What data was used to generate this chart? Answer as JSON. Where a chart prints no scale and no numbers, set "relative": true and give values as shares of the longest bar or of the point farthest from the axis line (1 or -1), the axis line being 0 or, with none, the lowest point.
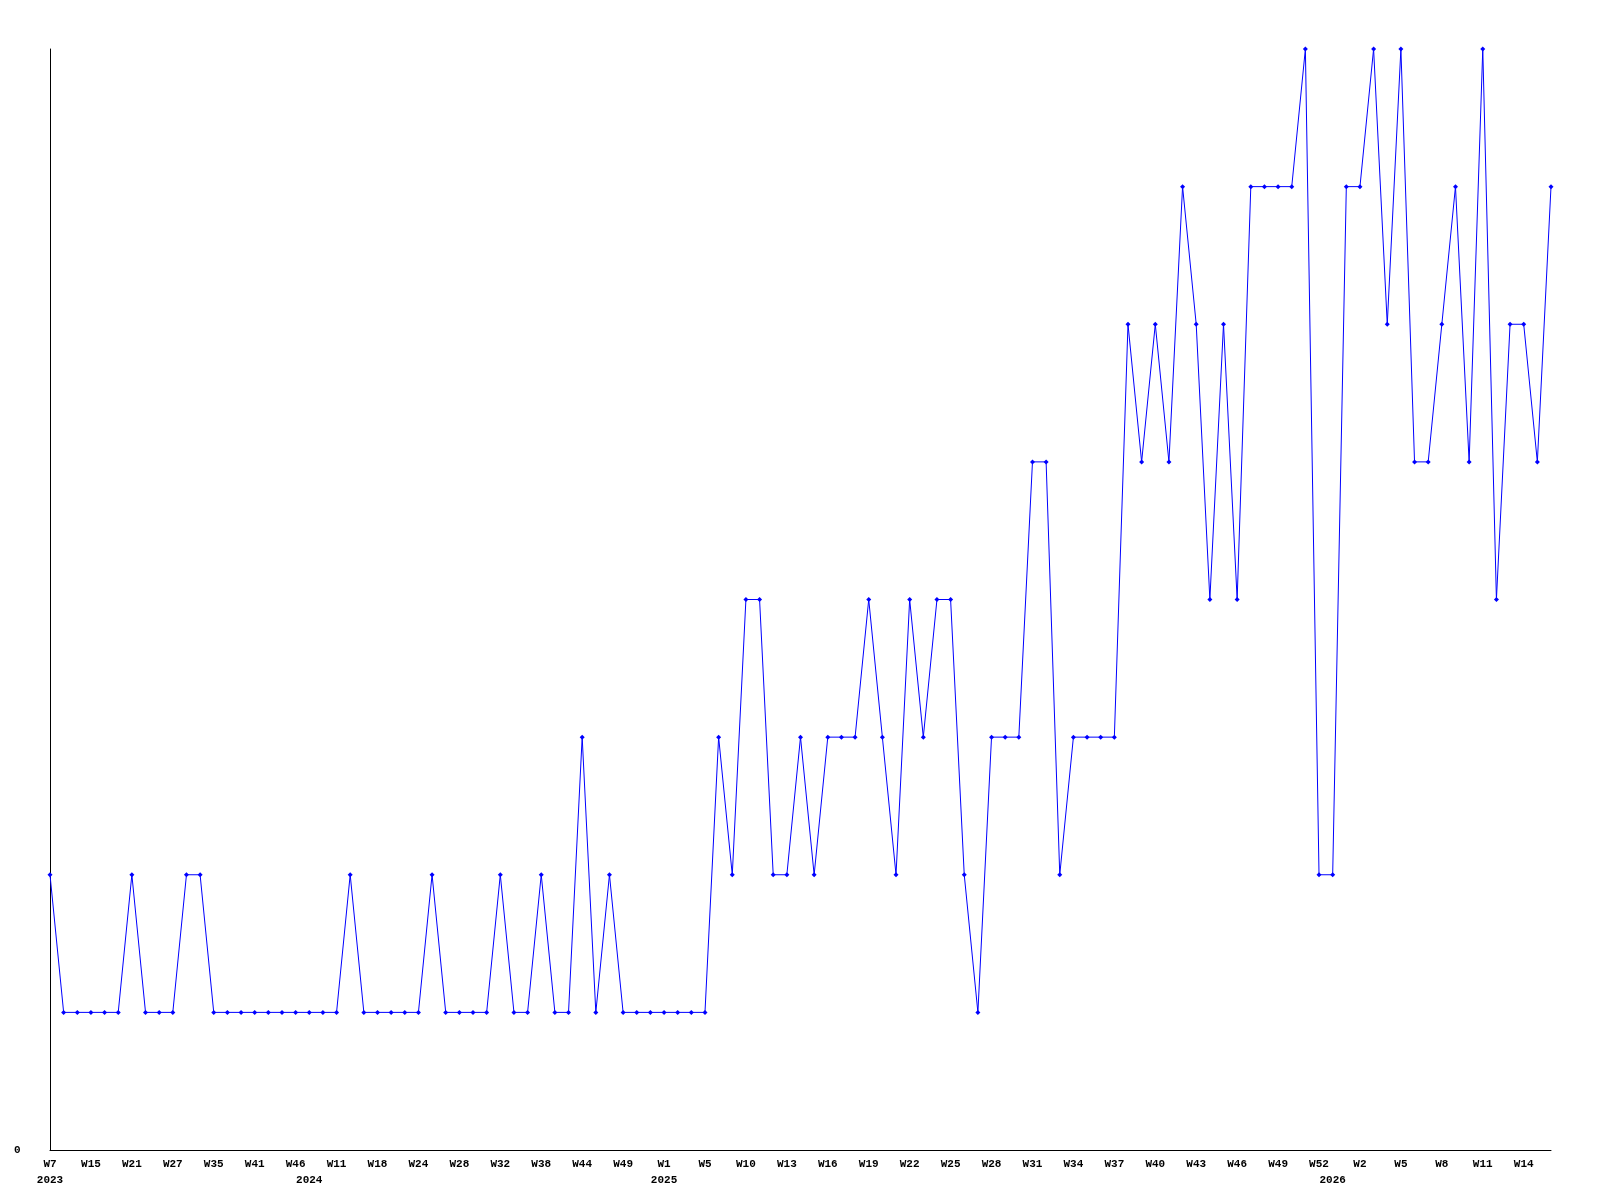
{
  "chart_data": {
    "type": "line",
    "relative": true,
    "marker": "diamond",
    "line_style": "solid",
    "annotations": [
      "0"
    ],
    "categories": [
      "W7\n2023",
      null,
      null,
      "W15",
      null,
      null,
      "W21",
      null,
      null,
      "W27",
      null,
      null,
      "W35",
      null,
      null,
      "W41",
      null,
      null,
      "W46",
      "\n2024",
      null,
      "W11",
      null,
      null,
      "W18",
      null,
      null,
      "W24",
      null,
      null,
      "W28",
      null,
      null,
      "W32",
      null,
      null,
      "W38",
      null,
      null,
      "W44",
      null,
      null,
      "W49",
      null,
      null,
      "W1\n2025",
      null,
      null,
      "W5",
      null,
      null,
      "W10",
      null,
      null,
      "W13",
      null,
      null,
      "W16",
      null,
      null,
      "W19",
      null,
      null,
      "W22",
      null,
      null,
      "W25",
      null,
      null,
      "W28",
      null,
      null,
      "W31",
      null,
      null,
      "W34",
      null,
      null,
      "W37",
      null,
      null,
      "W40",
      null,
      null,
      "W43",
      null,
      null,
      "W46",
      null,
      null,
      "W49",
      null,
      null,
      "W52",
      "\n2026",
      null,
      "W2",
      null,
      null,
      "W5",
      null,
      null,
      "W8",
      null,
      null,
      "W11",
      null,
      null,
      "W14",
      null,
      null
    ],
    "series": [
      {
        "color": "#0000ff",
        "values": [
          0.25,
          0.125,
          0.125,
          0.125,
          0.125,
          0.125,
          0.25,
          0.125,
          0.125,
          0.125,
          0.25,
          0.25,
          0.125,
          0.125,
          0.125,
          0.125,
          0.125,
          0.125,
          0.125,
          0.125,
          0.125,
          0.125,
          0.25,
          0.125,
          0.125,
          0.125,
          0.125,
          0.125,
          0.25,
          0.125,
          0.125,
          0.125,
          0.125,
          0.25,
          0.125,
          0.125,
          0.25,
          0.125,
          0.125,
          0.375,
          0.125,
          0.25,
          0.125,
          0.125,
          0.125,
          0.125,
          0.125,
          0.125,
          0.125,
          0.375,
          0.25,
          0.5,
          0.5,
          0.25,
          0.25,
          0.375,
          0.25,
          0.375,
          0.375,
          0.375,
          0.5,
          0.375,
          0.25,
          0.5,
          0.375,
          0.5,
          0.5,
          0.25,
          0.125,
          0.375,
          0.375,
          0.375,
          0.625,
          0.625,
          0.25,
          0.375,
          0.375,
          0.375,
          0.375,
          0.75,
          0.625,
          0.75,
          0.625,
          0.875,
          0.75,
          0.5,
          0.75,
          0.5,
          0.875,
          0.875,
          0.875,
          0.875,
          1,
          0.25,
          0.25,
          0.875,
          0.875,
          1,
          0.75,
          1,
          0.625,
          0.625,
          0.75,
          0.875,
          0.625,
          1,
          0.5,
          0.75,
          0.75,
          0.625,
          0.875
        ]
      }
    ]
  }
}
